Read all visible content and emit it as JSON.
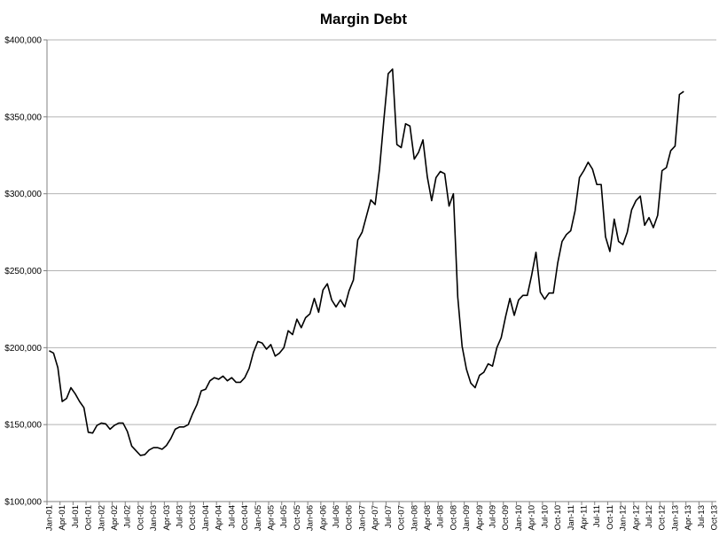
{
  "chart_data": {
    "type": "line",
    "title": "Margin Debt",
    "xlabel": "",
    "ylabel": "",
    "ylim": [
      100000,
      400000
    ],
    "y_ticks": [
      "$100,000",
      "$150,000",
      "$200,000",
      "$250,000",
      "$300,000",
      "$350,000",
      "$400,000"
    ],
    "y_tick_values": [
      100000,
      150000,
      200000,
      250000,
      300000,
      350000,
      400000
    ],
    "x_tick_labels": [
      "Jan-01",
      "Apr-01",
      "Jul-01",
      "Oct-01",
      "Jan-02",
      "Apr-02",
      "Jul-02",
      "Oct-02",
      "Jan-03",
      "Apr-03",
      "Jul-03",
      "Oct-03",
      "Jan-04",
      "Apr-04",
      "Jul-04",
      "Oct-04",
      "Jan-05",
      "Apr-05",
      "Jul-05",
      "Oct-05",
      "Jan-06",
      "Apr-06",
      "Jul-06",
      "Oct-06",
      "Jan-07",
      "Apr-07",
      "Jul-07",
      "Oct-07",
      "Jan-08",
      "Apr-08",
      "Jul-08",
      "Oct-08",
      "Jan-09",
      "Apr-09",
      "Jul-09",
      "Oct-09",
      "Jan-10",
      "Apr-10",
      "Jul-10",
      "Oct-10",
      "Jan-11",
      "Apr-11",
      "Jul-11",
      "Oct-11",
      "Jan-12",
      "Apr-12",
      "Jul-12",
      "Oct-12",
      "Jan-13",
      "Apr-13",
      "Jul-13",
      "Oct-13"
    ],
    "grid": true,
    "legend": "none",
    "series": [
      {
        "color": "#000000",
        "x_start": "Jan-01",
        "frequency": "monthly",
        "values": [
          198000,
          196500,
          187000,
          165000,
          167000,
          174000,
          170000,
          165000,
          161000,
          145000,
          144500,
          149500,
          151000,
          150500,
          147000,
          149500,
          151000,
          151000,
          145500,
          136000,
          133000,
          130000,
          130500,
          133500,
          135000,
          135000,
          134000,
          136500,
          141000,
          147000,
          148500,
          148500,
          150000,
          157000,
          163000,
          172000,
          173000,
          178500,
          180500,
          179500,
          181500,
          178500,
          180500,
          177500,
          177500,
          180500,
          186500,
          197000,
          204000,
          203000,
          199000,
          202000,
          194500,
          196500,
          200000,
          211000,
          208500,
          218500,
          213000,
          219500,
          222000,
          232000,
          223000,
          237500,
          241500,
          231000,
          226500,
          231000,
          226500,
          237000,
          244000,
          270000,
          275000,
          285500,
          296000,
          293000,
          316000,
          348000,
          378000,
          381000,
          332000,
          330000,
          345500,
          344000,
          322500,
          327000,
          335000,
          311000,
          295500,
          310500,
          314500,
          313000,
          292000,
          300000,
          233000,
          201000,
          186000,
          177000,
          174000,
          182000,
          184000,
          189500,
          188000,
          200000,
          206500,
          220000,
          232000,
          221000,
          231000,
          234000,
          234000,
          247000,
          262000,
          236000,
          231500,
          235500,
          235500,
          255000,
          269000,
          273500,
          276000,
          289000,
          310500,
          315000,
          320500,
          316000,
          306000,
          306000,
          272000,
          262500,
          283500,
          269000,
          267000,
          275000,
          289500,
          295500,
          298500,
          279500,
          284500,
          278000,
          286000,
          315000,
          317000,
          328000,
          331000,
          364500,
          366500
        ]
      }
    ]
  }
}
